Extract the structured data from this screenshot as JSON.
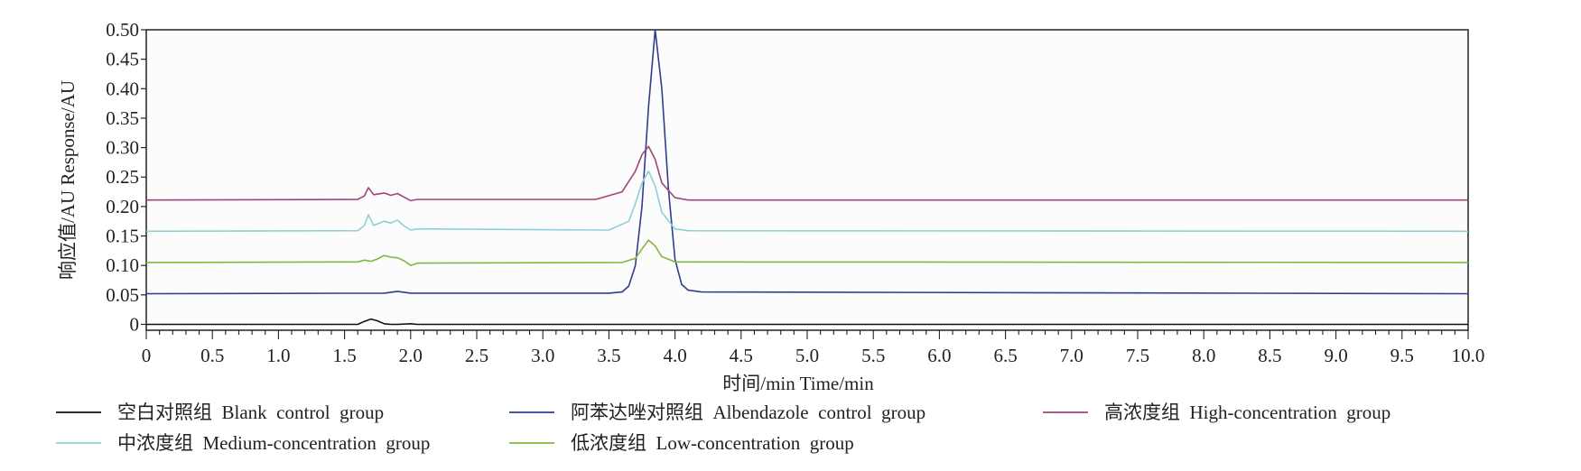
{
  "chart_data": {
    "type": "line",
    "title": "",
    "xlabel": "时间/min  Time/min",
    "ylabel": "响应值/AU  Response/AU",
    "xlim": [
      0,
      10
    ],
    "ylim": [
      -0.01,
      0.5
    ],
    "x_ticks": [
      "0",
      "0.5",
      "1.0",
      "1.5",
      "2.0",
      "2.5",
      "3.0",
      "3.5",
      "4.0",
      "4.5",
      "5.0",
      "5.5",
      "6.0",
      "6.5",
      "7.0",
      "7.5",
      "8.0",
      "8.5",
      "9.0",
      "9.5",
      "10.0"
    ],
    "y_ticks": [
      "0",
      "0.05",
      "0.10",
      "0.15",
      "0.20",
      "0.25",
      "0.30",
      "0.35",
      "0.40",
      "0.45",
      "0.50"
    ],
    "grid": false,
    "legend_position": "bottom",
    "series": [
      {
        "name": "空白对照组  Blank  control  group",
        "color": "#111111",
        "x": [
          0,
          1.6,
          1.65,
          1.7,
          1.75,
          1.8,
          1.85,
          1.9,
          2.0,
          2.05,
          2.1,
          10
        ],
        "y": [
          0,
          0,
          0.005,
          0.009,
          0.006,
          0.001,
          0,
          0,
          0.001,
          0,
          0,
          0
        ]
      },
      {
        "name": "阿苯达唑对照组  Albendazole  control  group",
        "color": "#2e3d8f",
        "x": [
          0,
          1.8,
          1.9,
          2.0,
          3.5,
          3.6,
          3.65,
          3.7,
          3.75,
          3.8,
          3.85,
          3.9,
          3.95,
          4.0,
          4.05,
          4.1,
          4.2,
          10
        ],
        "y": [
          0.052,
          0.053,
          0.056,
          0.053,
          0.053,
          0.055,
          0.065,
          0.1,
          0.2,
          0.37,
          0.5,
          0.4,
          0.23,
          0.11,
          0.068,
          0.058,
          0.055,
          0.052
        ]
      },
      {
        "name": "高浓度组  High-concentration  group",
        "color": "#a0457a",
        "x": [
          0,
          1.6,
          1.65,
          1.68,
          1.72,
          1.8,
          1.85,
          1.9,
          1.95,
          2.0,
          2.05,
          3.4,
          3.6,
          3.7,
          3.75,
          3.8,
          3.85,
          3.9,
          4.0,
          4.1,
          10
        ],
        "y": [
          0.211,
          0.212,
          0.218,
          0.232,
          0.22,
          0.223,
          0.219,
          0.222,
          0.216,
          0.21,
          0.212,
          0.212,
          0.225,
          0.26,
          0.288,
          0.302,
          0.28,
          0.24,
          0.215,
          0.211,
          0.211
        ]
      },
      {
        "name": "中浓度组  Medium-concentration  group",
        "color": "#8fd0d4",
        "x": [
          0,
          1.6,
          1.65,
          1.68,
          1.72,
          1.8,
          1.85,
          1.9,
          1.95,
          2.0,
          2.05,
          3.5,
          3.65,
          3.7,
          3.75,
          3.8,
          3.85,
          3.9,
          4.0,
          4.1,
          10
        ],
        "y": [
          0.158,
          0.159,
          0.168,
          0.186,
          0.168,
          0.175,
          0.172,
          0.177,
          0.167,
          0.16,
          0.162,
          0.16,
          0.175,
          0.205,
          0.24,
          0.26,
          0.235,
          0.19,
          0.162,
          0.159,
          0.158
        ]
      },
      {
        "name": "低浓度组  Low-concentration  group",
        "color": "#7fb93e",
        "x": [
          0,
          1.6,
          1.65,
          1.7,
          1.75,
          1.8,
          1.85,
          1.9,
          1.95,
          2.0,
          2.05,
          3.6,
          3.7,
          3.75,
          3.8,
          3.85,
          3.9,
          4.0,
          10
        ],
        "y": [
          0.105,
          0.106,
          0.109,
          0.107,
          0.111,
          0.117,
          0.114,
          0.113,
          0.108,
          0.1,
          0.104,
          0.105,
          0.112,
          0.128,
          0.143,
          0.133,
          0.115,
          0.106,
          0.105
        ]
      }
    ],
    "legend_layout": [
      [
        "空白对照组  Blank  control  group",
        "阿苯达唑对照组  Albendazole  control  group",
        "高浓度组  High-concentration  group"
      ],
      [
        "中浓度组  Medium-concentration  group",
        "低浓度组  Low-concentration  group"
      ]
    ]
  }
}
